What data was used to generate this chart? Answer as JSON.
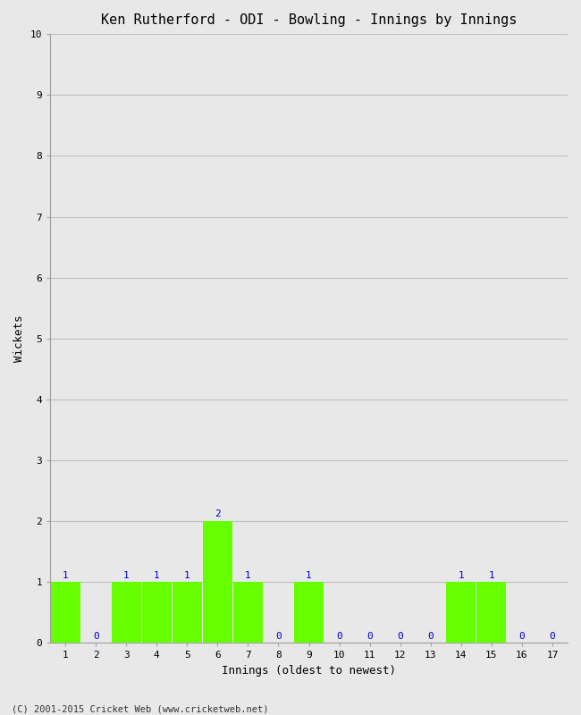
{
  "title": "Ken Rutherford - ODI - Bowling - Innings by Innings",
  "xlabel": "Innings (oldest to newest)",
  "ylabel": "Wickets",
  "footnote": "(C) 2001-2015 Cricket Web (www.cricketweb.net)",
  "categories": [
    "1",
    "2",
    "3",
    "4",
    "5",
    "6",
    "7",
    "8",
    "9",
    "10",
    "11",
    "12",
    "13",
    "14",
    "15",
    "16",
    "17"
  ],
  "values": [
    1,
    0,
    1,
    1,
    1,
    2,
    1,
    0,
    1,
    0,
    0,
    0,
    0,
    1,
    1,
    0,
    0
  ],
  "bar_color": "#66ff00",
  "label_color": "#0000cc",
  "ylim": [
    0,
    10
  ],
  "yticks": [
    0,
    1,
    2,
    3,
    4,
    5,
    6,
    7,
    8,
    9,
    10
  ],
  "bg_color": "#e8e8e8",
  "plot_bg_color": "#e8e8e8",
  "grid_color": "#c0c0c0",
  "title_fontsize": 11,
  "label_fontsize": 9,
  "tick_fontsize": 8,
  "annotation_fontsize": 8,
  "bar_width": 0.97
}
